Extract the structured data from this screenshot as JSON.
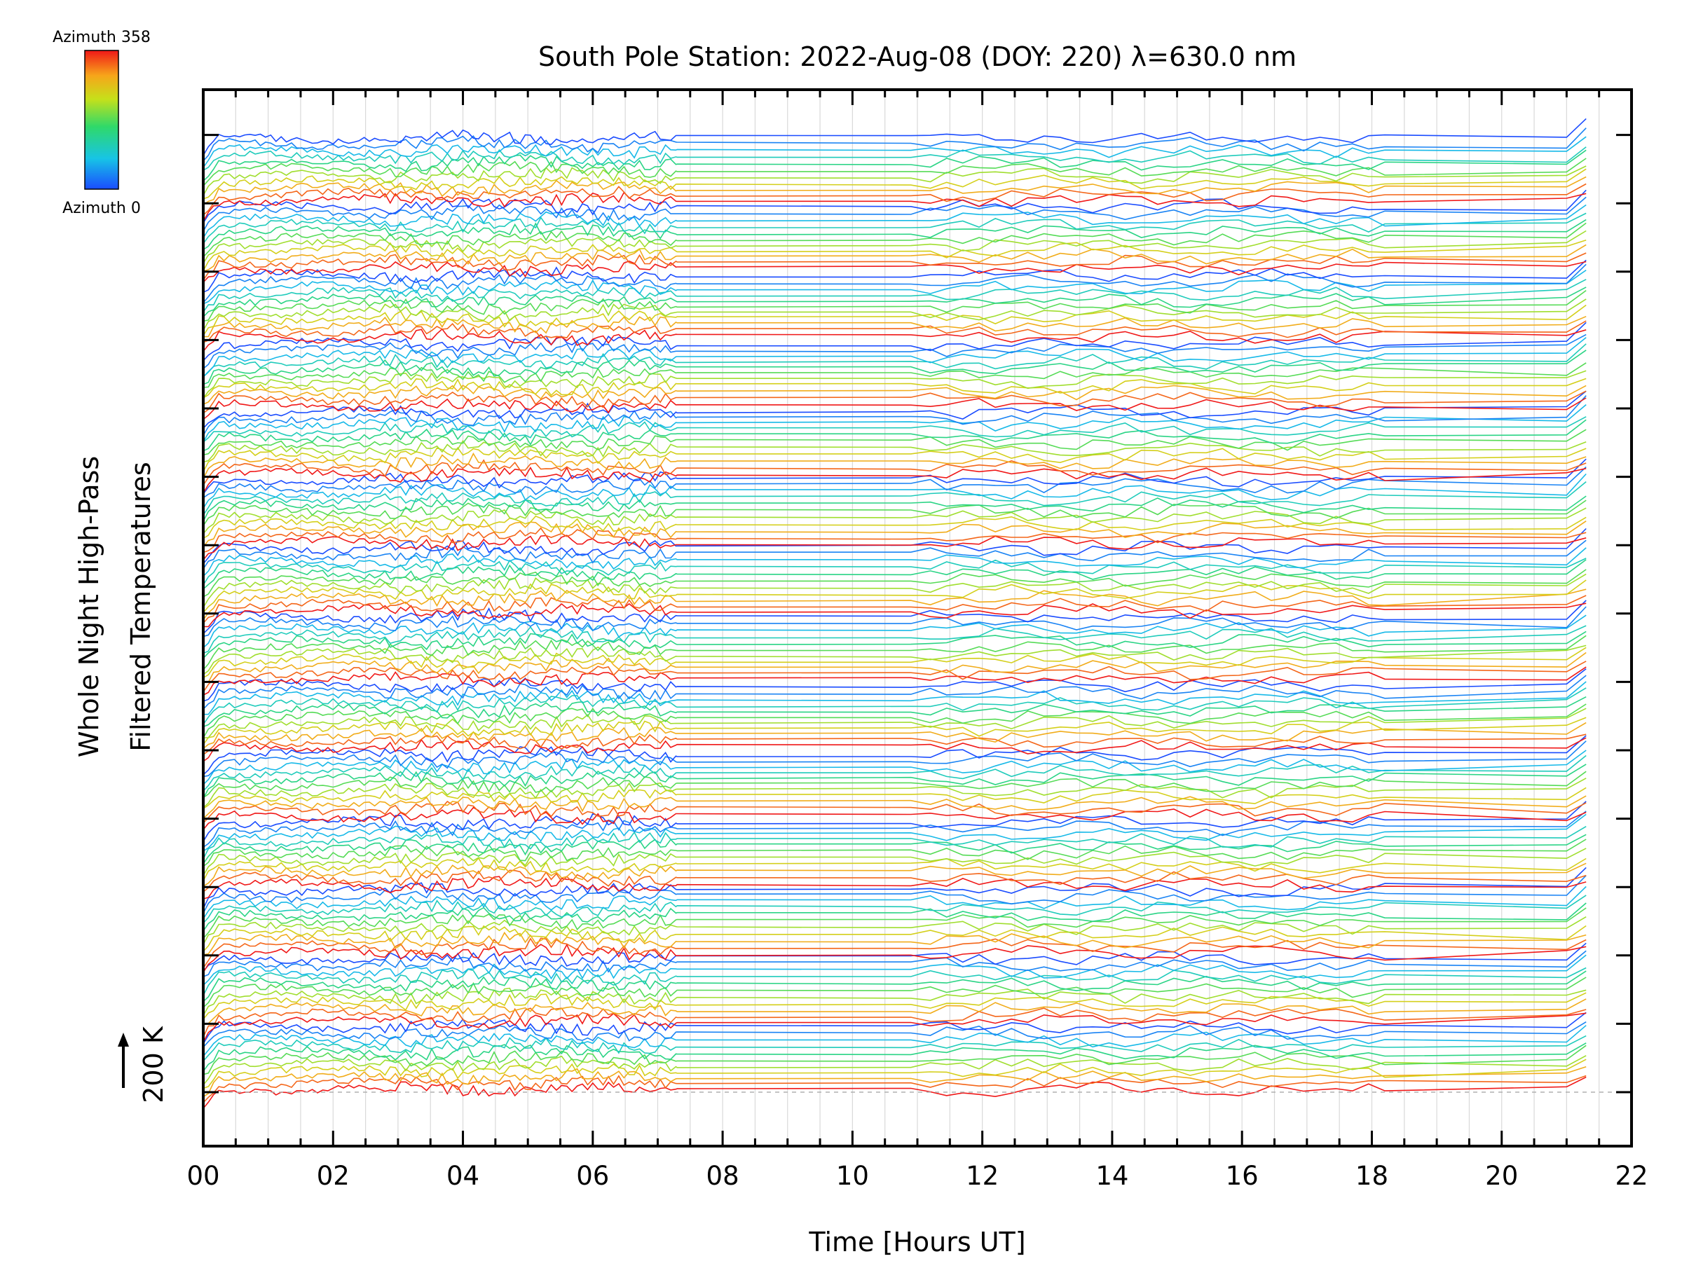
{
  "chart_data": {
    "type": "line",
    "title": "South Pole Station: 2022-Aug-08 (DOY: 220) λ=630.0 nm",
    "xlabel": "Time [Hours UT]",
    "ylabel_line1": "Whole Night High-Pass",
    "ylabel_line2": "Filtered Temperatures",
    "scale_label": "200 K",
    "xlim": [
      0,
      22
    ],
    "x_ticks": [
      "00",
      "02",
      "04",
      "06",
      "08",
      "10",
      "12",
      "14",
      "16",
      "18",
      "20",
      "22"
    ],
    "x_tick_values": [
      0,
      2,
      4,
      6,
      8,
      10,
      12,
      14,
      16,
      18,
      20,
      22
    ],
    "colorbar": {
      "top_label": "Azimuth 358",
      "bottom_label": "Azimuth 0",
      "min": 0,
      "max": 358,
      "colormap": "rainbow (blue to red)"
    },
    "series_count": 154,
    "series_groups": 14,
    "series_per_group": 11,
    "data_gap_hours": [
      7.3,
      10.9
    ],
    "last_sample_hour": 21.3,
    "description_units": "Each trace is a high-pass filtered temperature series for one azimuth, vertically offset; offsets step about 11 K, groups step about 120 K."
  },
  "colors": {
    "frame": "#000000",
    "grid": "#d9d9d9",
    "baseline": "#b0b0b0"
  }
}
